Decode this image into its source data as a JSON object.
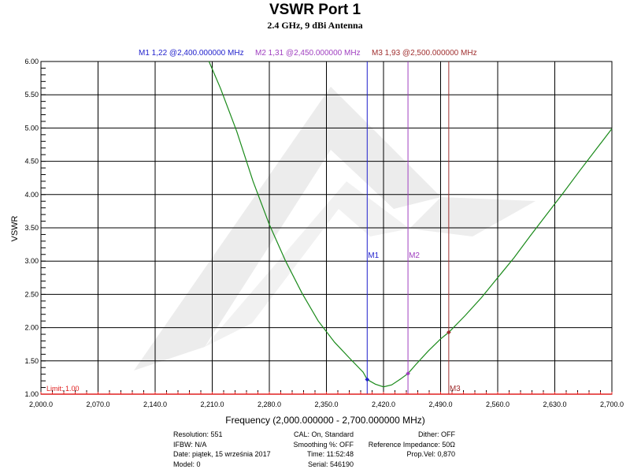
{
  "chart_data": {
    "type": "line",
    "title": "VSWR Port 1",
    "subtitle": "2.4 GHz, 9 dBi Antenna",
    "xlabel": "Frequency (2,000.000000 - 2,700.000000 MHz)",
    "ylabel": "VSWR",
    "xlim": [
      2000,
      2700
    ],
    "ylim": [
      1.0,
      6.0
    ],
    "x_ticks": [
      {
        "value": 2000,
        "label": "2,000.0"
      },
      {
        "value": 2070,
        "label": "2,070.0"
      },
      {
        "value": 2140,
        "label": "2,140.0"
      },
      {
        "value": 2210,
        "label": "2,210.0"
      },
      {
        "value": 2280,
        "label": "2,280.0"
      },
      {
        "value": 2350,
        "label": "2,350.0"
      },
      {
        "value": 2420,
        "label": "2,420.0"
      },
      {
        "value": 2490,
        "label": "2,490.0"
      },
      {
        "value": 2560,
        "label": "2,560.0"
      },
      {
        "value": 2630,
        "label": "2,630.0"
      },
      {
        "value": 2700,
        "label": "2,700.0"
      }
    ],
    "y_ticks": [
      {
        "value": 6.0,
        "label": "6.00"
      },
      {
        "value": 5.5,
        "label": "5.50"
      },
      {
        "value": 5.0,
        "label": "5.00"
      },
      {
        "value": 4.5,
        "label": "4.50"
      },
      {
        "value": 4.0,
        "label": "4.00"
      },
      {
        "value": 3.5,
        "label": "3.50"
      },
      {
        "value": 3.0,
        "label": "3.00"
      },
      {
        "value": 2.5,
        "label": "2.50"
      },
      {
        "value": 2.0,
        "label": "2.00"
      },
      {
        "value": 1.5,
        "label": "1.50"
      },
      {
        "value": 1.0,
        "label": "1.00"
      }
    ],
    "grid": true,
    "series": [
      {
        "color": "#1a8a1a",
        "points": [
          [
            2206,
            6.0
          ],
          [
            2220,
            5.6
          ],
          [
            2240,
            4.95
          ],
          [
            2260,
            4.2
          ],
          [
            2280,
            3.55
          ],
          [
            2300,
            3.0
          ],
          [
            2320,
            2.52
          ],
          [
            2340,
            2.1
          ],
          [
            2360,
            1.78
          ],
          [
            2380,
            1.52
          ],
          [
            2395,
            1.33
          ],
          [
            2400,
            1.22
          ],
          [
            2410,
            1.15
          ],
          [
            2420,
            1.11
          ],
          [
            2430,
            1.14
          ],
          [
            2440,
            1.22
          ],
          [
            2450,
            1.31
          ],
          [
            2460,
            1.45
          ],
          [
            2475,
            1.65
          ],
          [
            2490,
            1.83
          ],
          [
            2500,
            1.93
          ],
          [
            2520,
            2.18
          ],
          [
            2540,
            2.45
          ],
          [
            2560,
            2.75
          ],
          [
            2580,
            3.05
          ],
          [
            2600,
            3.38
          ],
          [
            2620,
            3.7
          ],
          [
            2640,
            4.02
          ],
          [
            2660,
            4.35
          ],
          [
            2680,
            4.67
          ],
          [
            2700,
            4.99
          ]
        ]
      }
    ],
    "markers": [
      {
        "name": "M1",
        "x": 2400,
        "y": 1.22,
        "color": "#1f1fcc",
        "label": "M1  1,22 @2,400.000000 MHz"
      },
      {
        "name": "M2",
        "x": 2450,
        "y": 1.31,
        "color": "#a040c0",
        "label": "M2  1,31 @2,450.000000 MHz"
      },
      {
        "name": "M3",
        "x": 2500,
        "y": 1.93,
        "color": "#a03030",
        "label": "M3  1,93 @2,500.000000 MHz"
      }
    ],
    "limit_line": {
      "value": 1.0,
      "label": "Limit: 1.00",
      "color": "#e02020"
    }
  },
  "footer": {
    "col1": [
      "Resolution: 551",
      "IFBW: N/A",
      "Date: piątek, 15 września 2017",
      "Model: 0"
    ],
    "col2": [
      "CAL: On, Standard",
      "Smoothing %:  OFF",
      "Time: 11:52:48",
      "Serial: 546190"
    ],
    "col3": [
      "Dither:  OFF",
      "Reference Impedance: 50Ω",
      "Prop.Vel: 0,870"
    ]
  }
}
